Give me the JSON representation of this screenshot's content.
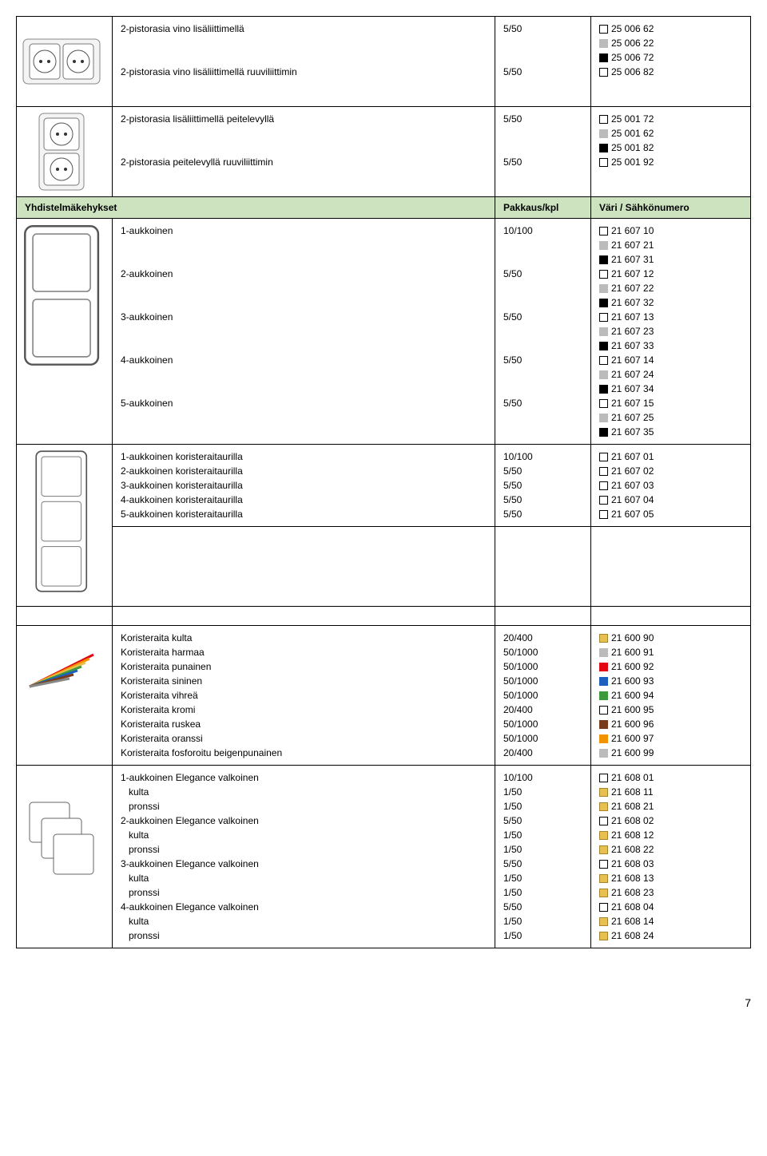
{
  "section1": {
    "rows": [
      {
        "desc": "2-pistorasia vino lisäliittimellä",
        "pack": "5/50",
        "colors": [
          {
            "sw": "white",
            "code": "25 006 62"
          },
          {
            "sw": "gray",
            "code": "25 006 22"
          },
          {
            "sw": "black",
            "code": "25 006 72"
          }
        ]
      },
      {
        "desc": "2-pistorasia vino lisäliittimellä ruuviliittimin",
        "pack": "5/50",
        "colors": [
          {
            "sw": "white",
            "code": "25 006 82"
          }
        ]
      }
    ]
  },
  "section2": {
    "rows": [
      {
        "desc": "2-pistorasia lisäliittimellä peitelevyllä",
        "pack": "5/50",
        "colors": [
          {
            "sw": "white",
            "code": "25 001 72"
          },
          {
            "sw": "gray",
            "code": "25 001 62"
          },
          {
            "sw": "black",
            "code": "25 001 82"
          }
        ]
      },
      {
        "desc": "2-pistorasia peitelevyllä ruuviliittimin",
        "pack": "5/50",
        "colors": [
          {
            "sw": "white",
            "code": "25 001 92"
          }
        ]
      }
    ]
  },
  "header": {
    "c1": "Yhdistelmäkehykset",
    "c2": "Pakkaus/kpl",
    "c3": "Väri / Sähkönumero"
  },
  "section3": {
    "rows": [
      {
        "desc": "1-aukkoinen",
        "pack": "10/100",
        "colors": [
          {
            "sw": "white",
            "code": "21 607 10"
          },
          {
            "sw": "gray",
            "code": "21 607 21"
          },
          {
            "sw": "black",
            "code": "21 607 31"
          }
        ]
      },
      {
        "desc": "2-aukkoinen",
        "pack": "5/50",
        "colors": [
          {
            "sw": "white",
            "code": "21 607 12"
          },
          {
            "sw": "gray",
            "code": "21 607 22"
          },
          {
            "sw": "black",
            "code": "21 607 32"
          }
        ]
      },
      {
        "desc": "3-aukkoinen",
        "pack": "5/50",
        "colors": [
          {
            "sw": "white",
            "code": "21 607 13"
          },
          {
            "sw": "gray",
            "code": "21 607 23"
          },
          {
            "sw": "black",
            "code": "21 607 33"
          }
        ]
      },
      {
        "desc": "4-aukkoinen",
        "pack": "5/50",
        "colors": [
          {
            "sw": "white",
            "code": "21 607 14"
          },
          {
            "sw": "gray",
            "code": "21 607 24"
          },
          {
            "sw": "black",
            "code": "21 607 34"
          }
        ]
      },
      {
        "desc": "5-aukkoinen",
        "pack": "5/50",
        "colors": [
          {
            "sw": "white",
            "code": "21 607 15"
          },
          {
            "sw": "gray",
            "code": "21 607 25"
          },
          {
            "sw": "black",
            "code": "21 607 35"
          }
        ]
      }
    ]
  },
  "section4": {
    "rows": [
      {
        "desc": "1-aukkoinen koristeraitaurilla",
        "pack": "10/100",
        "colors": [
          {
            "sw": "white",
            "code": "21 607 01"
          }
        ]
      },
      {
        "desc": "2-aukkoinen koristeraitaurilla",
        "pack": "5/50",
        "colors": [
          {
            "sw": "white",
            "code": "21 607 02"
          }
        ]
      },
      {
        "desc": "3-aukkoinen koristeraitaurilla",
        "pack": "5/50",
        "colors": [
          {
            "sw": "white",
            "code": "21 607 03"
          }
        ]
      },
      {
        "desc": "4-aukkoinen koristeraitaurilla",
        "pack": "5/50",
        "colors": [
          {
            "sw": "white",
            "code": "21 607 04"
          }
        ]
      },
      {
        "desc": "5-aukkoinen koristeraitaurilla",
        "pack": "5/50",
        "colors": [
          {
            "sw": "white",
            "code": "21 607 05"
          }
        ]
      }
    ]
  },
  "section5": {
    "rows": [
      {
        "desc": "Koristeraita kulta",
        "pack": "20/400",
        "colors": [
          {
            "sw": "gold",
            "code": "21 600 90"
          }
        ]
      },
      {
        "desc": "Koristeraita harmaa",
        "pack": "50/1000",
        "colors": [
          {
            "sw": "gray",
            "code": "21 600 91"
          }
        ]
      },
      {
        "desc": "Koristeraita punainen",
        "pack": "50/1000",
        "colors": [
          {
            "sw": "red",
            "code": "21 600 92"
          }
        ]
      },
      {
        "desc": "Koristeraita sininen",
        "pack": "50/1000",
        "colors": [
          {
            "sw": "blue",
            "code": "21 600 93"
          }
        ]
      },
      {
        "desc": "Koristeraita vihreä",
        "pack": "50/1000",
        "colors": [
          {
            "sw": "green",
            "code": "21 600 94"
          }
        ]
      },
      {
        "desc": "Koristeraita kromi",
        "pack": "20/400",
        "colors": [
          {
            "sw": "white",
            "code": "21 600 95"
          }
        ]
      },
      {
        "desc": "Koristeraita ruskea",
        "pack": "50/1000",
        "colors": [
          {
            "sw": "brown",
            "code": "21 600 96"
          }
        ]
      },
      {
        "desc": "Koristeraita oranssi",
        "pack": "50/1000",
        "colors": [
          {
            "sw": "orange",
            "code": "21 600 97"
          }
        ]
      },
      {
        "desc": "Koristeraita fosforoitu beigenpunainen",
        "pack": "20/400",
        "colors": [
          {
            "sw": "gray",
            "code": "21 600 99"
          }
        ]
      }
    ]
  },
  "section6": {
    "rows": [
      {
        "desc": "1-aukkoinen Elegance valkoinen",
        "pack": "10/100",
        "colors": [
          {
            "sw": "white",
            "code": "21 608 01"
          }
        ]
      },
      {
        "desc": "   kulta",
        "pack": "1/50",
        "colors": [
          {
            "sw": "gold",
            "code": "21 608 11"
          }
        ]
      },
      {
        "desc": "   pronssi",
        "pack": "1/50",
        "colors": [
          {
            "sw": "gold",
            "code": "21 608 21"
          }
        ]
      },
      {
        "desc": "2-aukkoinen Elegance valkoinen",
        "pack": "5/50",
        "colors": [
          {
            "sw": "white",
            "code": "21 608 02"
          }
        ]
      },
      {
        "desc": "   kulta",
        "pack": "1/50",
        "colors": [
          {
            "sw": "gold",
            "code": "21 608 12"
          }
        ]
      },
      {
        "desc": "   pronssi",
        "pack": "1/50",
        "colors": [
          {
            "sw": "gold",
            "code": "21 608 22"
          }
        ]
      },
      {
        "desc": "3-aukkoinen Elegance valkoinen",
        "pack": "5/50",
        "colors": [
          {
            "sw": "white",
            "code": "21 608 03"
          }
        ]
      },
      {
        "desc": "   kulta",
        "pack": "1/50",
        "colors": [
          {
            "sw": "gold",
            "code": "21 608 13"
          }
        ]
      },
      {
        "desc": "   pronssi",
        "pack": "1/50",
        "colors": [
          {
            "sw": "gold",
            "code": "21 608 23"
          }
        ]
      },
      {
        "desc": "4-aukkoinen Elegance valkoinen",
        "pack": "5/50",
        "colors": [
          {
            "sw": "white",
            "code": "21 608 04"
          }
        ]
      },
      {
        "desc": "   kulta",
        "pack": "1/50",
        "colors": [
          {
            "sw": "gold",
            "code": "21 608 14"
          }
        ]
      },
      {
        "desc": "   pronssi",
        "pack": "1/50",
        "colors": [
          {
            "sw": "gold",
            "code": "21 608 24"
          }
        ]
      }
    ]
  },
  "page_num": "7"
}
